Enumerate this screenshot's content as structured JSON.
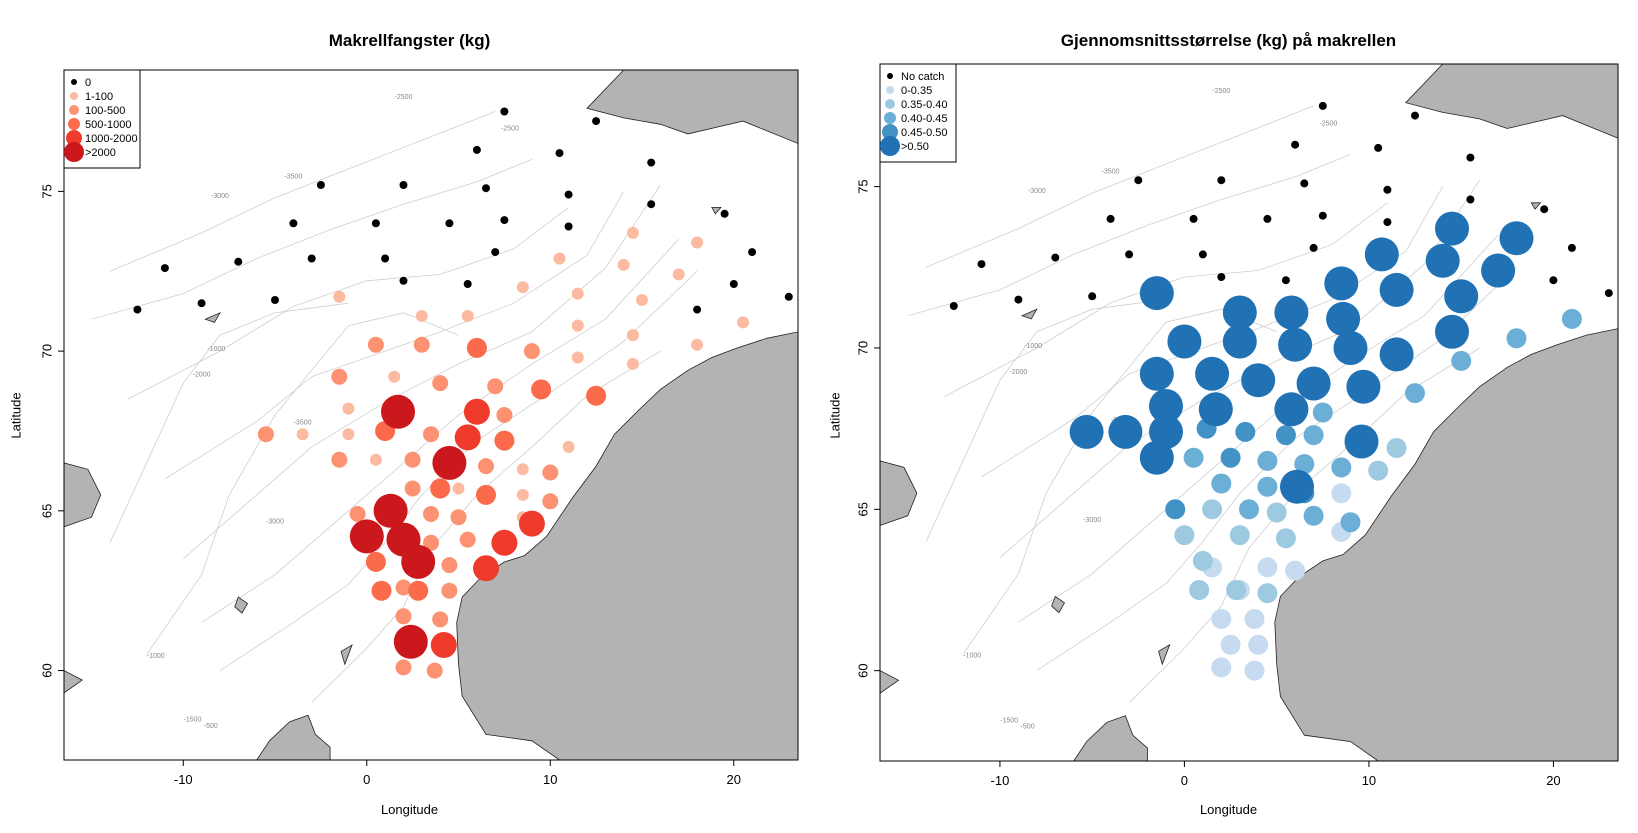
{
  "panels": [
    {
      "title": "Makrellfangster (kg)",
      "xlabel": "Longitude",
      "ylabel": "Latitude",
      "legend": [
        "0",
        "1-100",
        "100-500",
        "500-1000",
        "1000-2000",
        ">2000"
      ],
      "colors": [
        "#000000",
        "#fcbba1",
        "#fc9272",
        "#fb6a4a",
        "#ef3b2c",
        "#cb181d"
      ]
    },
    {
      "title": "Gjennomsnittsstørrelse (kg) på makrellen",
      "xlabel": "Longitude",
      "ylabel": "Latitude",
      "legend": [
        "No catch",
        "0-0.35",
        "0.35-0.40",
        "0.40-0.45",
        "0.45-0.50",
        ">0.50"
      ],
      "colors": [
        "#000000",
        "#c6dbef",
        "#9ecae1",
        "#6baed6",
        "#4292c6",
        "#2171b5"
      ]
    }
  ],
  "axes": {
    "xticks": [
      -10,
      0,
      10,
      20
    ],
    "yticks": [
      60,
      65,
      70,
      75
    ],
    "xlim": [
      -16.5,
      23.5
    ],
    "ylim": [
      57.2,
      78.8
    ]
  },
  "contour_labels": [
    "-2500",
    "-2500",
    "-3000",
    "-3500",
    "-1000",
    "-2000",
    "-3500",
    "-3000",
    "-1000",
    "-1500",
    "-500"
  ],
  "chart_data": {
    "type": "scatter",
    "map": "Norwegian Sea",
    "xlabel": "Longitude",
    "ylabel": "Latitude",
    "xlim": [
      -16.5,
      23.5
    ],
    "ylim": [
      57.2,
      78.8
    ],
    "series": [
      {
        "name": "Makrellfangster (kg)",
        "classes": [
          "0",
          "1-100",
          "100-500",
          "500-1000",
          "1000-2000",
          ">2000"
        ],
        "points": [
          [
            7.5,
            77.5,
            0
          ],
          [
            12.5,
            77.2,
            0
          ],
          [
            6,
            76.3,
            0
          ],
          [
            10.5,
            76.2,
            0
          ],
          [
            15.5,
            75.9,
            0
          ],
          [
            -2.5,
            75.2,
            0
          ],
          [
            2,
            75.2,
            0
          ],
          [
            6.5,
            75.1,
            0
          ],
          [
            11,
            74.9,
            0
          ],
          [
            15.5,
            74.6,
            0
          ],
          [
            -4,
            74,
            0
          ],
          [
            0.5,
            74,
            0
          ],
          [
            4.5,
            74,
            0
          ],
          [
            7.5,
            74.1,
            0
          ],
          [
            11,
            73.9,
            0
          ],
          [
            19.5,
            74.3,
            0
          ],
          [
            -11,
            72.6,
            0
          ],
          [
            -7,
            72.8,
            0
          ],
          [
            -3,
            72.9,
            0
          ],
          [
            1,
            72.9,
            0
          ],
          [
            7,
            73.1,
            0
          ],
          [
            21,
            73.1,
            0
          ],
          [
            -12.5,
            71.3,
            0
          ],
          [
            -9,
            71.5,
            0
          ],
          [
            -5,
            71.6,
            0
          ],
          [
            2,
            72.2,
            0
          ],
          [
            5.5,
            72.1,
            0
          ],
          [
            20,
            72.1,
            0
          ],
          [
            23,
            71.7,
            0
          ],
          [
            18,
            71.3,
            0
          ],
          [
            10.5,
            72.9,
            1
          ],
          [
            14.5,
            73.7,
            1
          ],
          [
            18,
            73.4,
            1
          ],
          [
            14,
            72.7,
            1
          ],
          [
            17,
            72.4,
            1
          ],
          [
            -1.5,
            71.7,
            1
          ],
          [
            8.5,
            72,
            1
          ],
          [
            11.5,
            71.8,
            1
          ],
          [
            15,
            71.6,
            1
          ],
          [
            3,
            71.1,
            1
          ],
          [
            5.5,
            71.1,
            1
          ],
          [
            11.5,
            70.8,
            1
          ],
          [
            14.5,
            70.5,
            1
          ],
          [
            20.5,
            70.9,
            1
          ],
          [
            18,
            70.2,
            1
          ],
          [
            11.5,
            69.8,
            1
          ],
          [
            14.5,
            69.6,
            1
          ],
          [
            1.5,
            69.2,
            1
          ],
          [
            -1,
            68.2,
            1
          ],
          [
            -3.5,
            67.4,
            1
          ],
          [
            -1,
            67.4,
            1
          ],
          [
            11,
            67,
            1
          ],
          [
            0.5,
            66.6,
            1
          ],
          [
            8.5,
            66.3,
            1
          ],
          [
            8.5,
            65.5,
            1
          ],
          [
            5,
            65.7,
            1
          ],
          [
            8.5,
            64.8,
            1
          ],
          [
            0.5,
            70.2,
            2
          ],
          [
            3,
            70.2,
            2
          ],
          [
            9,
            70,
            2
          ],
          [
            -1.5,
            69.2,
            2
          ],
          [
            4,
            69,
            2
          ],
          [
            7,
            68.9,
            2
          ],
          [
            -5.5,
            67.4,
            2
          ],
          [
            3.5,
            67.4,
            2
          ],
          [
            7.5,
            68,
            2
          ],
          [
            -1.5,
            66.6,
            2
          ],
          [
            2.5,
            66.6,
            2
          ],
          [
            6.5,
            66.4,
            2
          ],
          [
            10,
            66.2,
            2
          ],
          [
            2.5,
            65.7,
            2
          ],
          [
            10,
            65.3,
            2
          ],
          [
            -0.5,
            64.9,
            2
          ],
          [
            3.5,
            64.9,
            2
          ],
          [
            5,
            64.8,
            2
          ],
          [
            5.5,
            64.1,
            2
          ],
          [
            4.5,
            63.3,
            2
          ],
          [
            3.5,
            64,
            2
          ],
          [
            2,
            62.6,
            2
          ],
          [
            4.5,
            62.5,
            2
          ],
          [
            2,
            61.7,
            2
          ],
          [
            4,
            61.6,
            2
          ],
          [
            2,
            60.1,
            2
          ],
          [
            3.7,
            60,
            2
          ],
          [
            6,
            70.1,
            3
          ],
          [
            9.5,
            68.8,
            3
          ],
          [
            12.5,
            68.6,
            3
          ],
          [
            1,
            67.5,
            3
          ],
          [
            7.5,
            67.2,
            3
          ],
          [
            4,
            65.7,
            3
          ],
          [
            6.5,
            65.5,
            3
          ],
          [
            0.5,
            63.4,
            3
          ],
          [
            2.8,
            62.5,
            3
          ],
          [
            0.8,
            62.5,
            3
          ],
          [
            6,
            68.1,
            4
          ],
          [
            5.5,
            67.3,
            4
          ],
          [
            9,
            64.6,
            4
          ],
          [
            7.5,
            64,
            4
          ],
          [
            6.5,
            63.2,
            4
          ],
          [
            4.2,
            60.8,
            4
          ],
          [
            1.7,
            68.1,
            5
          ],
          [
            4.5,
            66.5,
            5
          ],
          [
            1.3,
            65,
            5
          ],
          [
            0,
            64.2,
            5
          ],
          [
            2,
            64.1,
            5
          ],
          [
            2.8,
            63.4,
            5
          ],
          [
            2.4,
            60.9,
            5
          ]
        ]
      },
      {
        "name": "Gjennomsnittsstørrelse (kg) på makrellen",
        "classes": [
          "No catch",
          "0-0.35",
          "0.35-0.40",
          "0.40-0.45",
          "0.45-0.50",
          ">0.50"
        ],
        "points": [
          [
            7.5,
            77.5,
            0
          ],
          [
            12.5,
            77.2,
            0
          ],
          [
            6,
            76.3,
            0
          ],
          [
            10.5,
            76.2,
            0
          ],
          [
            15.5,
            75.9,
            0
          ],
          [
            -2.5,
            75.2,
            0
          ],
          [
            2,
            75.2,
            0
          ],
          [
            6.5,
            75.1,
            0
          ],
          [
            11,
            74.9,
            0
          ],
          [
            15.5,
            74.6,
            0
          ],
          [
            -4,
            74,
            0
          ],
          [
            0.5,
            74,
            0
          ],
          [
            4.5,
            74,
            0
          ],
          [
            7.5,
            74.1,
            0
          ],
          [
            11,
            73.9,
            0
          ],
          [
            19.5,
            74.3,
            0
          ],
          [
            -11,
            72.6,
            0
          ],
          [
            -7,
            72.8,
            0
          ],
          [
            -3,
            72.9,
            0
          ],
          [
            1,
            72.9,
            0
          ],
          [
            7,
            73.1,
            0
          ],
          [
            21,
            73.1,
            0
          ],
          [
            -12.5,
            71.3,
            0
          ],
          [
            -9,
            71.5,
            0
          ],
          [
            -5,
            71.6,
            0
          ],
          [
            2,
            72.2,
            0
          ],
          [
            5.5,
            72.1,
            0
          ],
          [
            20,
            72.1,
            0
          ],
          [
            23,
            71.7,
            0
          ],
          [
            8.5,
            65.5,
            1
          ],
          [
            8.5,
            64.3,
            1
          ],
          [
            1.5,
            63.2,
            1
          ],
          [
            3,
            62.5,
            1
          ],
          [
            4.5,
            63.2,
            1
          ],
          [
            6,
            63.1,
            1
          ],
          [
            2,
            61.6,
            1
          ],
          [
            3.8,
            61.6,
            1
          ],
          [
            2.5,
            60.8,
            1
          ],
          [
            4,
            60.8,
            1
          ],
          [
            2,
            60.1,
            1
          ],
          [
            3.8,
            60,
            1
          ],
          [
            10.5,
            66.2,
            2
          ],
          [
            11.5,
            66.9,
            2
          ],
          [
            1.5,
            65,
            2
          ],
          [
            5,
            64.9,
            2
          ],
          [
            3,
            64.2,
            2
          ],
          [
            0,
            64.2,
            2
          ],
          [
            5.5,
            64.1,
            2
          ],
          [
            1,
            63.4,
            2
          ],
          [
            0.8,
            62.5,
            2
          ],
          [
            2.8,
            62.5,
            2
          ],
          [
            4.5,
            62.4,
            2
          ],
          [
            12.5,
            68.6,
            3
          ],
          [
            15,
            69.6,
            3
          ],
          [
            18,
            70.3,
            3
          ],
          [
            21,
            70.9,
            3
          ],
          [
            0.5,
            66.6,
            3
          ],
          [
            4.5,
            66.5,
            3
          ],
          [
            6.5,
            66.4,
            3
          ],
          [
            2,
            65.8,
            3
          ],
          [
            4.5,
            65.7,
            3
          ],
          [
            3.5,
            65,
            3
          ],
          [
            7,
            64.8,
            3
          ],
          [
            9,
            64.6,
            3
          ],
          [
            8.5,
            66.3,
            3
          ],
          [
            7.5,
            68,
            3
          ],
          [
            7,
            67.3,
            3
          ],
          [
            -0.5,
            65,
            4
          ],
          [
            1.2,
            67.5,
            4
          ],
          [
            3.3,
            67.4,
            4
          ],
          [
            5.5,
            67.3,
            4
          ],
          [
            2.5,
            66.6,
            4
          ],
          [
            6.5,
            65.5,
            4
          ],
          [
            -1.5,
            71.7,
            5
          ],
          [
            3,
            71.1,
            5
          ],
          [
            5.8,
            71.1,
            5
          ],
          [
            8.5,
            72,
            5
          ],
          [
            11.5,
            71.8,
            5
          ],
          [
            15,
            71.6,
            5
          ],
          [
            10.7,
            72.9,
            5
          ],
          [
            14,
            72.7,
            5
          ],
          [
            17,
            72.4,
            5
          ],
          [
            14.5,
            73.7,
            5
          ],
          [
            18,
            73.4,
            5
          ],
          [
            0,
            70.2,
            5
          ],
          [
            3,
            70.2,
            5
          ],
          [
            6,
            70.1,
            5
          ],
          [
            9,
            70,
            5
          ],
          [
            11.5,
            69.8,
            5
          ],
          [
            14.5,
            70.5,
            5
          ],
          [
            8.6,
            70.9,
            5
          ],
          [
            -1.5,
            69.2,
            5
          ],
          [
            1.5,
            69.2,
            5
          ],
          [
            4,
            69,
            5
          ],
          [
            7,
            68.9,
            5
          ],
          [
            9.7,
            68.8,
            5
          ],
          [
            -1,
            68.2,
            5
          ],
          [
            1.7,
            68.1,
            5
          ],
          [
            5.8,
            68.1,
            5
          ],
          [
            -5.3,
            67.4,
            5
          ],
          [
            -3.2,
            67.4,
            5
          ],
          [
            -1,
            67.4,
            5
          ],
          [
            9.6,
            67.1,
            5
          ],
          [
            -1.5,
            66.6,
            5
          ],
          [
            6.1,
            65.7,
            5
          ]
        ]
      }
    ]
  }
}
